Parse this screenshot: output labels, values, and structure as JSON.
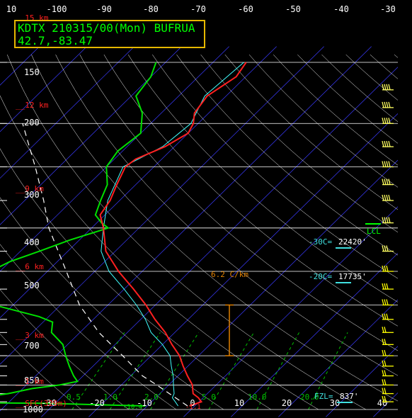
{
  "header": {
    "station_line": "KDTX 210315/00(Mon) BUFRUA",
    "coords_line": "42.7,-83.47"
  },
  "colors": {
    "background": "#000000",
    "isobar": "#ffffff",
    "isotherm": "#3a3aff",
    "dry_adiabat": "#ffffff",
    "mixing_ratio": "#00c000",
    "temperature": "#ff2020",
    "dewpoint": "#00e000",
    "wetbulb": "#40ffff",
    "parcel": "#ffffff",
    "wind_barb": "#ffff00",
    "height_label": "#ff2020",
    "frame_box": "#e6b800",
    "lapse_rate": "#e08000",
    "level_label": "#40e0e0",
    "lcl": "#00ff00"
  },
  "chart_data": {
    "type": "line",
    "title": "KDTX 210315/00(Mon) BUFRUA",
    "xlabel": "",
    "ylabel": "",
    "log_y": true,
    "top_temperature_ticks": [
      "10",
      "-100",
      "-90",
      "-80",
      "-70",
      "-60",
      "-50",
      "-40",
      "-30"
    ],
    "bottom_temperature_ticks": [
      "-30",
      "-20",
      "-10",
      "0",
      "10",
      "20",
      "30",
      "40"
    ],
    "pressure_ticks": [
      "150",
      "200",
      "300",
      "400",
      "500",
      "700",
      "850",
      "1000"
    ],
    "height_labels": [
      "15 km",
      "12 km",
      "9 km",
      "6 km",
      "3 km",
      "1 km",
      "SFC(329m)"
    ],
    "mixing_ratio_labels": [
      "0.5",
      "1.0",
      "2.0",
      "5.0",
      "10.0",
      "20.0"
    ],
    "mixing_ratio_values": [
      0.5,
      1.0,
      2.0,
      5.0,
      10.0,
      20.0
    ],
    "surface_values": [
      "-10.4",
      "-1.1"
    ],
    "lapse_rate": {
      "label": "6.2 C/km",
      "bottom_hpa": 700,
      "top_hpa": 500
    },
    "levels": [
      {
        "label": "-30C=",
        "value": "22420'"
      },
      {
        "label": "-20C=",
        "value": "17735'"
      },
      {
        "label": "FZL=",
        "value": "837'"
      }
    ],
    "lcl_label": "LCL",
    "series": [
      {
        "key": "temperature",
        "points": [
          [
            977,
            -1.1
          ],
          [
            950,
            0.5
          ],
          [
            925,
            -1.0
          ],
          [
            900,
            -3.0
          ],
          [
            875,
            -4.0
          ],
          [
            850,
            -5.0
          ],
          [
            800,
            -8.0
          ],
          [
            750,
            -11.0
          ],
          [
            700,
            -14.0
          ],
          [
            650,
            -18.0
          ],
          [
            600,
            -22.0
          ],
          [
            550,
            -27.0
          ],
          [
            500,
            -32.0
          ],
          [
            450,
            -38.0
          ],
          [
            400,
            -45.0
          ],
          [
            350,
            -52.0
          ],
          [
            300,
            -57.5
          ],
          [
            275,
            -61.0
          ],
          [
            250,
            -62.0
          ],
          [
            225,
            -64.0
          ],
          [
            200,
            -66.0
          ],
          [
            190,
            -65.5
          ],
          [
            175,
            -62.0
          ],
          [
            160,
            -60.0
          ],
          [
            150,
            -61.0
          ],
          [
            140,
            -63.0
          ],
          [
            125,
            -64.0
          ],
          [
            110,
            -62.0
          ],
          [
            100,
            -63.0
          ]
        ]
      },
      {
        "key": "dewpoint",
        "points": [
          [
            977,
            -10.4
          ],
          [
            960,
            -32.0
          ],
          [
            950,
            -70.0
          ],
          [
            925,
            -78.0
          ],
          [
            915,
            -45.0
          ],
          [
            900,
            -42.0
          ],
          [
            870,
            -38.0
          ],
          [
            850,
            -33.0
          ],
          [
            830,
            -30.0
          ],
          [
            800,
            -32.0
          ],
          [
            750,
            -35.0
          ],
          [
            700,
            -38.0
          ],
          [
            650,
            -41.0
          ],
          [
            600,
            -46.0
          ],
          [
            560,
            -48.0
          ],
          [
            540,
            -52.0
          ],
          [
            500,
            -64.0
          ],
          [
            450,
            -70.0
          ],
          [
            420,
            -72.0
          ],
          [
            400,
            -72.0
          ],
          [
            375,
            -70.0
          ],
          [
            350,
            -66.0
          ],
          [
            325,
            -62.0
          ],
          [
            300,
            -56.5
          ],
          [
            290,
            -59.0
          ],
          [
            275,
            -62.0
          ],
          [
            250,
            -64.0
          ],
          [
            225,
            -66.0
          ],
          [
            200,
            -70.0
          ],
          [
            180,
            -71.0
          ],
          [
            160,
            -70.0
          ],
          [
            140,
            -74.0
          ],
          [
            125,
            -79.0
          ],
          [
            110,
            -80.0
          ],
          [
            100,
            -82.0
          ]
        ]
      },
      {
        "key": "wetbulb",
        "points": [
          [
            977,
            -3.5
          ],
          [
            950,
            -5.0
          ],
          [
            925,
            -6.5
          ],
          [
            900,
            -7.0
          ],
          [
            850,
            -9.0
          ],
          [
            800,
            -11.0
          ],
          [
            750,
            -13.5
          ],
          [
            700,
            -16.0
          ],
          [
            650,
            -20.0
          ],
          [
            600,
            -25.0
          ],
          [
            550,
            -29.0
          ],
          [
            500,
            -34.0
          ],
          [
            450,
            -40.0
          ],
          [
            400,
            -47.0
          ],
          [
            350,
            -53.0
          ],
          [
            300,
            -57.5
          ],
          [
            250,
            -62.5
          ],
          [
            200,
            -66.5
          ],
          [
            175,
            -62.5
          ],
          [
            150,
            -61.5
          ],
          [
            125,
            -64.5
          ],
          [
            100,
            -63.5
          ]
        ]
      },
      {
        "key": "parcel",
        "points": [
          [
            977,
            -1.5
          ],
          [
            900,
            -8.0
          ],
          [
            850,
            -12.5
          ],
          [
            800,
            -17.5
          ],
          [
            700,
            -26.0
          ],
          [
            600,
            -36.0
          ],
          [
            500,
            -46.0
          ],
          [
            400,
            -56.0
          ],
          [
            300,
            -69.0
          ],
          [
            250,
            -76.0
          ],
          [
            200,
            -85.0
          ],
          [
            150,
            -97.0
          ]
        ]
      }
    ],
    "wind_pressures": [
      120,
      135,
      150,
      175,
      200,
      225,
      250,
      290,
      350,
      400,
      450,
      500,
      550,
      600,
      650,
      700,
      750,
      800,
      850,
      900,
      950
    ]
  }
}
